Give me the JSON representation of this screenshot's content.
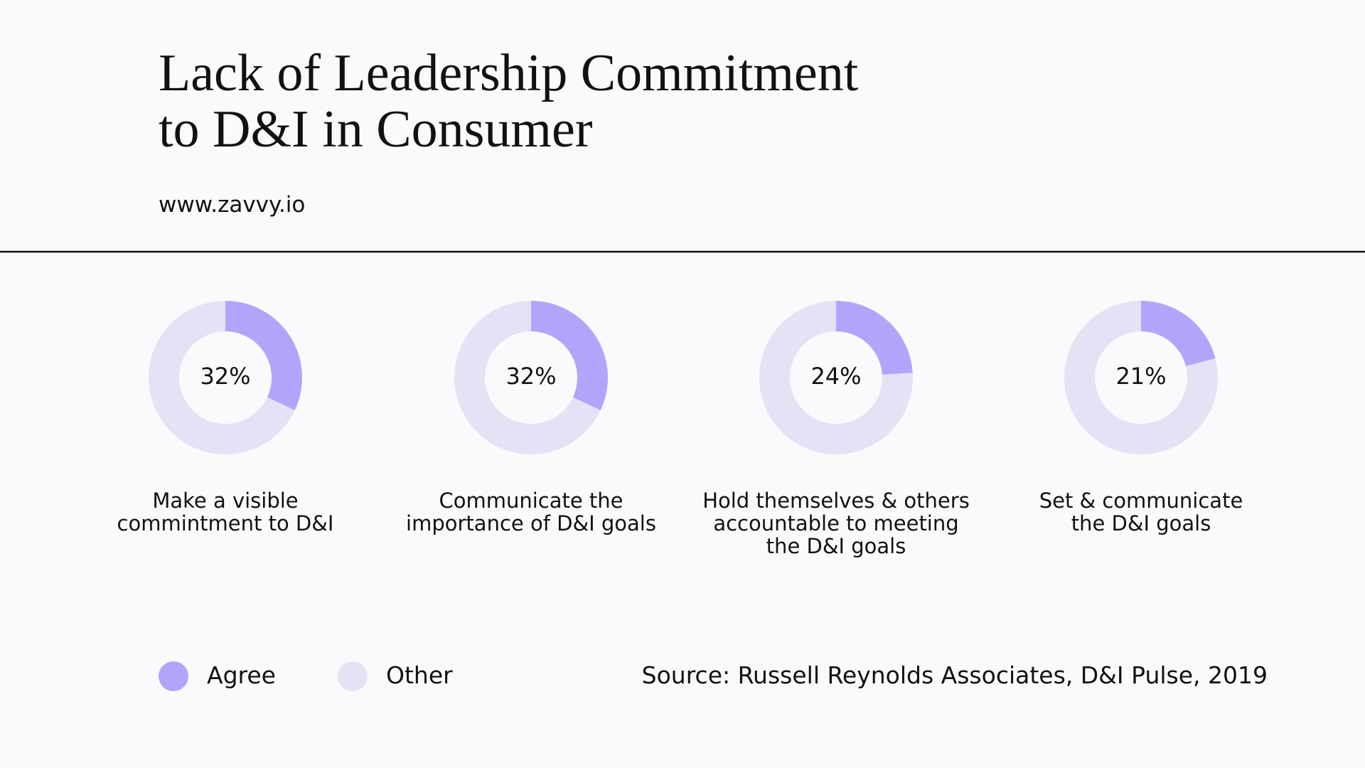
{
  "chart_data": {
    "type": "donut",
    "title": "Lack of Leadership Commitment\nto D&I in Consumer",
    "subtitle": "www.zavvy.io",
    "source": "Source: Russell Reynolds Associates, D&I Pulse, 2019",
    "categories": [
      "Make a visible\ncommintment to D&I",
      "Communicate the\nimportance of D&I goals",
      "Hold themselves & others\naccountable to meeting\nthe D&I goals",
      "Set & communicate\nthe D&I goals"
    ],
    "series": [
      {
        "name": "Agree",
        "color": "#b3a4fb",
        "values": [
          32,
          32,
          24,
          21
        ],
        "value_labels": [
          "32%",
          "32%",
          "24%",
          "21%"
        ]
      },
      {
        "name": "Other",
        "color": "#e5e2f6",
        "values": [
          68,
          68,
          76,
          79
        ]
      }
    ]
  }
}
